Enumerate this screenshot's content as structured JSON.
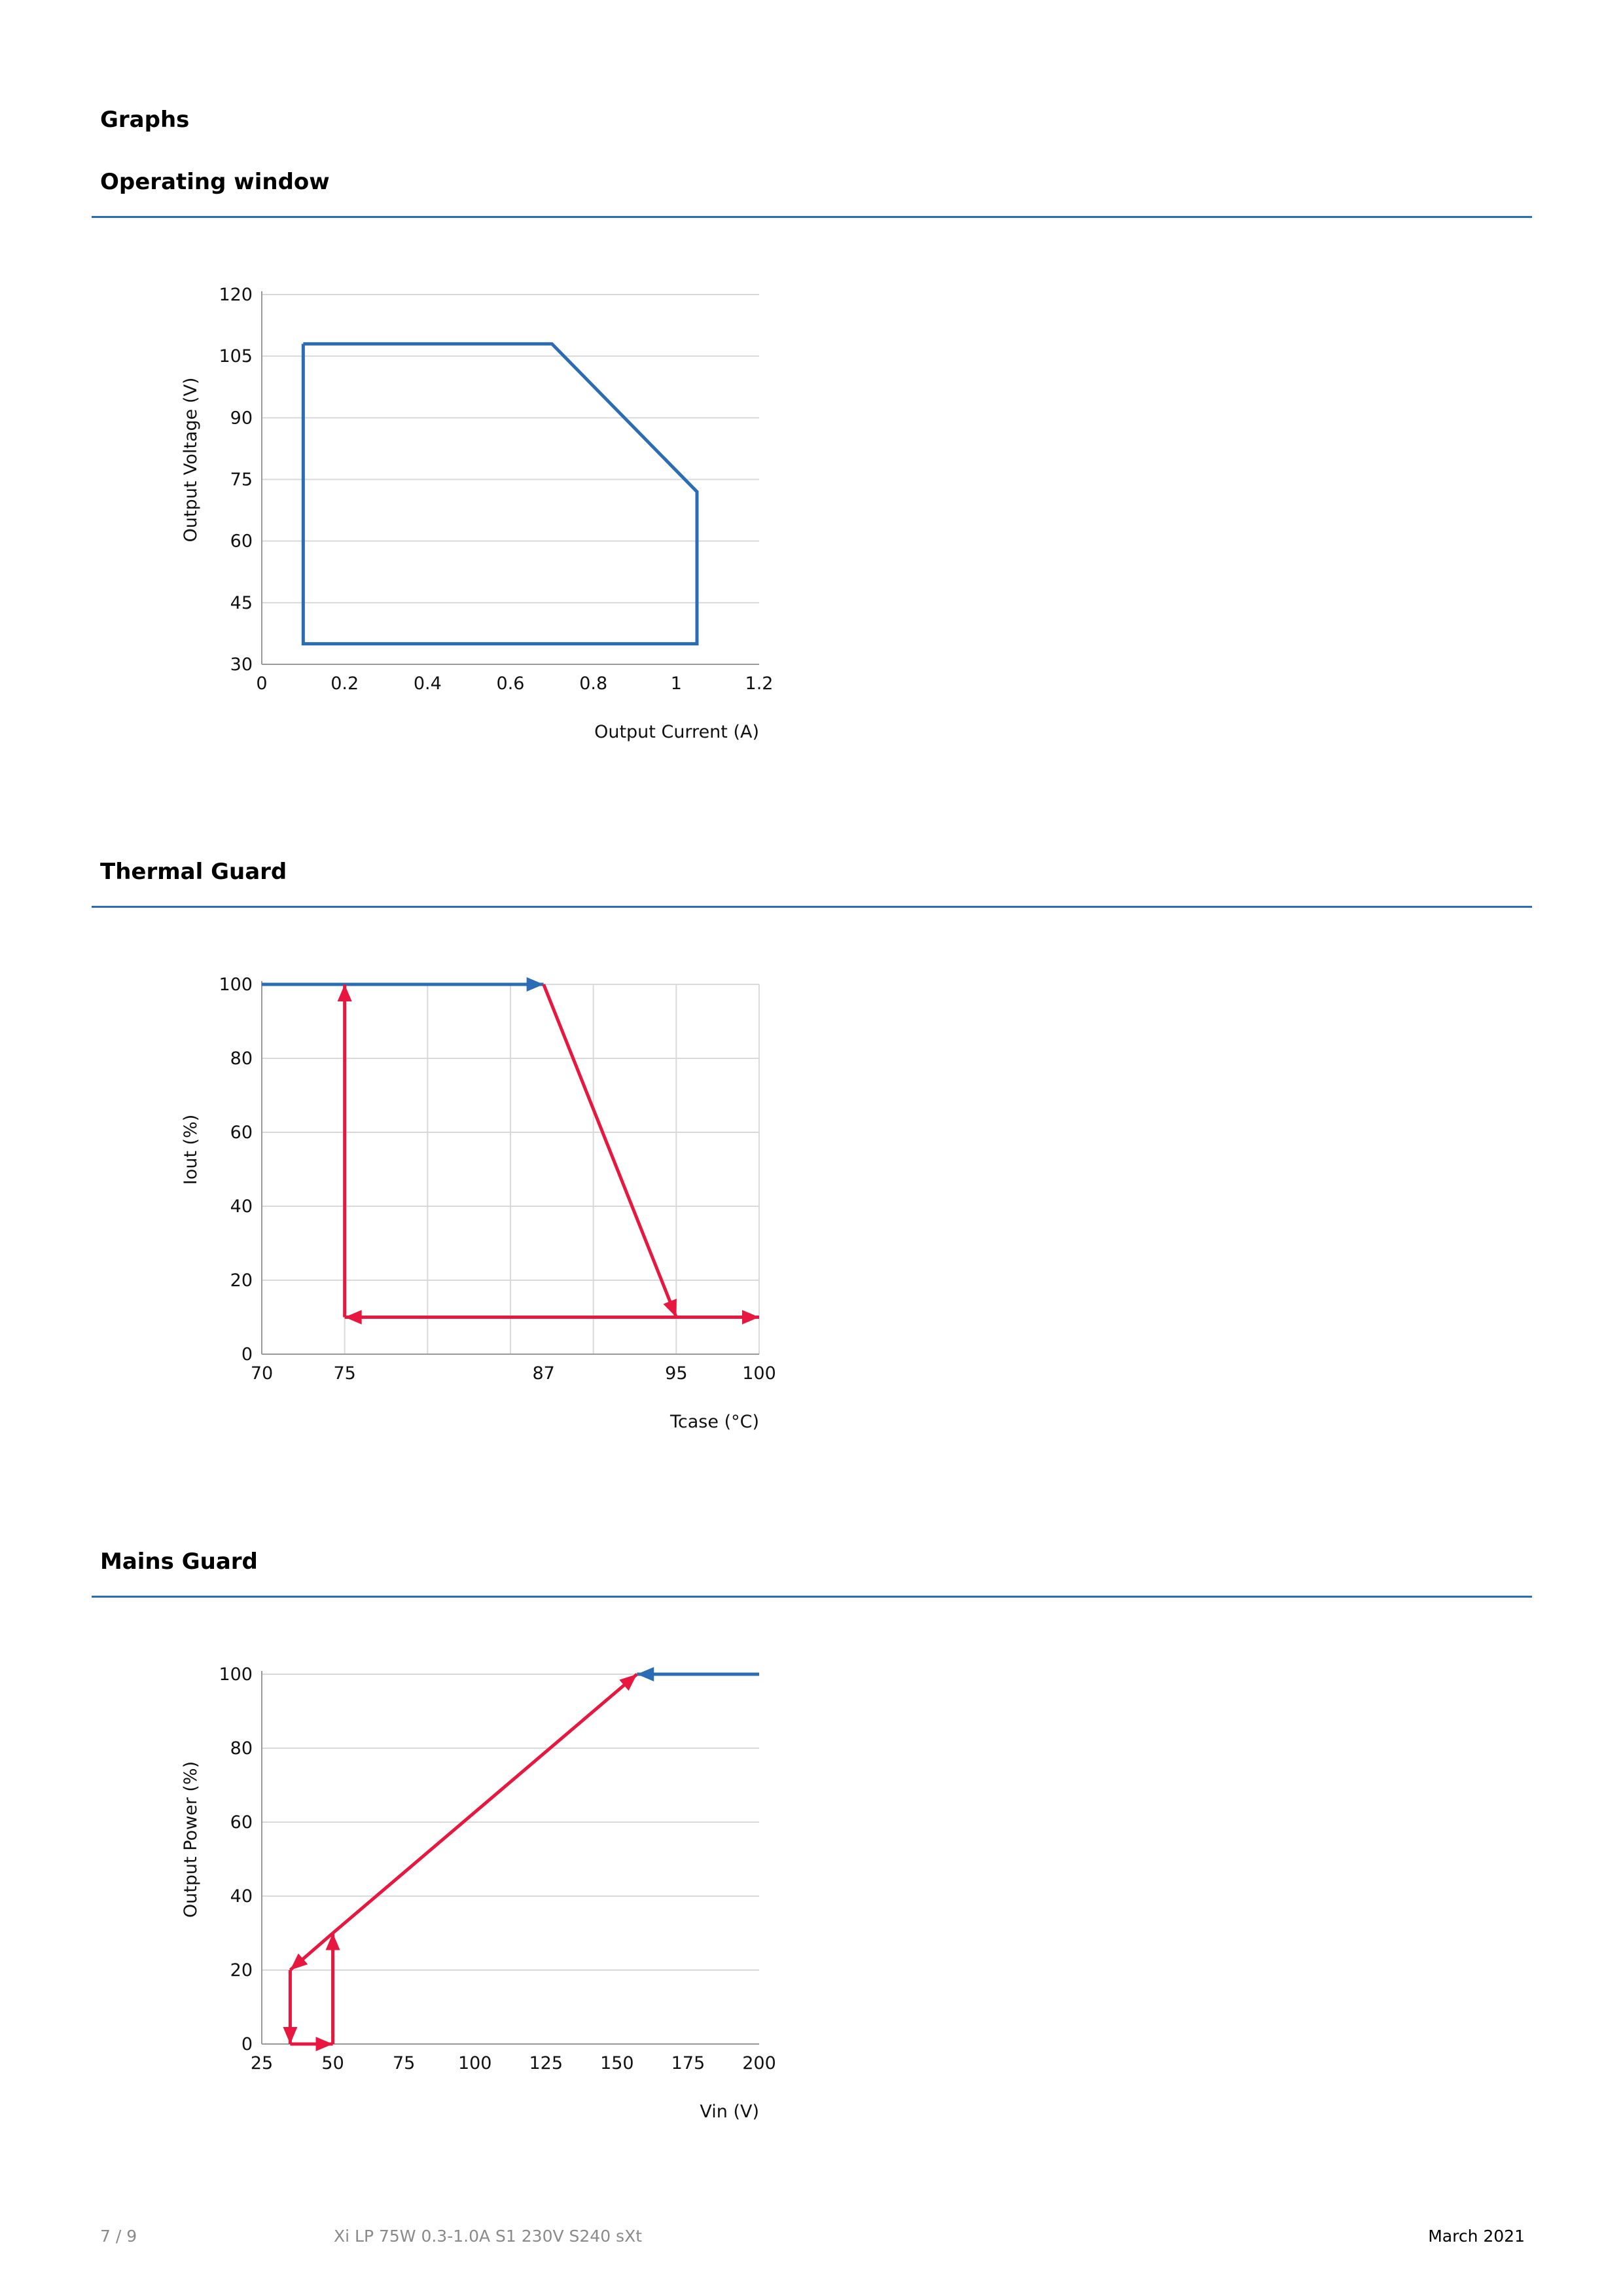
{
  "page": {
    "section_title": "Graphs",
    "footer": {
      "page_number": "7 / 9",
      "product_name": "Xi LP 75W 0.3-1.0A S1 230V S240 sXt",
      "date": "March 2021"
    }
  },
  "colors": {
    "rule": "#2a6db5",
    "blue": "#2a6db5",
    "red": "#e8173f",
    "grid": "#d9d9d9"
  },
  "chart_data": [
    {
      "type": "line",
      "heading": "Operating window",
      "xlabel": "Output Current (A)",
      "ylabel": "Output Voltage (V)",
      "xlim": [
        0,
        1.2
      ],
      "ylim": [
        30,
        120
      ],
      "xticks": [
        0,
        0.2,
        0.4,
        0.6,
        0.8,
        1,
        1.2
      ],
      "yticks": [
        30,
        45,
        60,
        75,
        90,
        105,
        120
      ],
      "grid": "horizontal",
      "series": [
        {
          "color": "blue",
          "x": [
            0.1,
            0.7,
            1.05,
            1.05,
            0.1,
            0.1
          ],
          "y": [
            108,
            108,
            72,
            35,
            35,
            108
          ]
        }
      ]
    },
    {
      "type": "line",
      "heading": "Thermal Guard",
      "xlabel": "Tcase (°C)",
      "ylabel": "Iout (%)",
      "xlim": [
        70,
        100
      ],
      "ylim": [
        0,
        100
      ],
      "xticks": [
        70,
        75,
        87,
        95,
        100
      ],
      "yticks": [
        0,
        20,
        40,
        60,
        80,
        100
      ],
      "grid": "both",
      "series": [
        {
          "color": "blue",
          "x": [
            70,
            87
          ],
          "y": [
            100,
            100
          ],
          "arrow": "end"
        },
        {
          "color": "red",
          "x": [
            87,
            95
          ],
          "y": [
            100,
            10
          ],
          "arrow": "end"
        },
        {
          "color": "red",
          "x": [
            75,
            100
          ],
          "y": [
            10,
            10
          ],
          "arrow": "both"
        },
        {
          "color": "red",
          "x": [
            75,
            75
          ],
          "y": [
            10,
            100
          ],
          "arrow": "end"
        }
      ]
    },
    {
      "type": "line",
      "heading": "Mains Guard",
      "xlabel": "Vin (V)",
      "ylabel": "Output Power (%)",
      "xlim": [
        25,
        200
      ],
      "ylim": [
        0,
        100
      ],
      "xticks": [
        25,
        50,
        75,
        100,
        125,
        150,
        175,
        200
      ],
      "yticks": [
        0,
        20,
        40,
        60,
        80,
        100
      ],
      "grid": "horizontal",
      "series": [
        {
          "color": "blue",
          "x": [
            200,
            157
          ],
          "y": [
            100,
            100
          ],
          "arrow": "end"
        },
        {
          "color": "red",
          "x": [
            50,
            157
          ],
          "y": [
            30,
            100
          ],
          "arrow": "end"
        },
        {
          "color": "red",
          "x": [
            50,
            35
          ],
          "y": [
            30,
            20
          ],
          "arrow": "end"
        },
        {
          "color": "red",
          "x": [
            35,
            35
          ],
          "y": [
            20,
            0
          ],
          "arrow": "end"
        },
        {
          "color": "red",
          "x": [
            35,
            50
          ],
          "y": [
            0,
            0
          ],
          "arrow": "end"
        },
        {
          "color": "red",
          "x": [
            50,
            50
          ],
          "y": [
            0,
            30
          ],
          "arrow": "end"
        }
      ]
    }
  ]
}
